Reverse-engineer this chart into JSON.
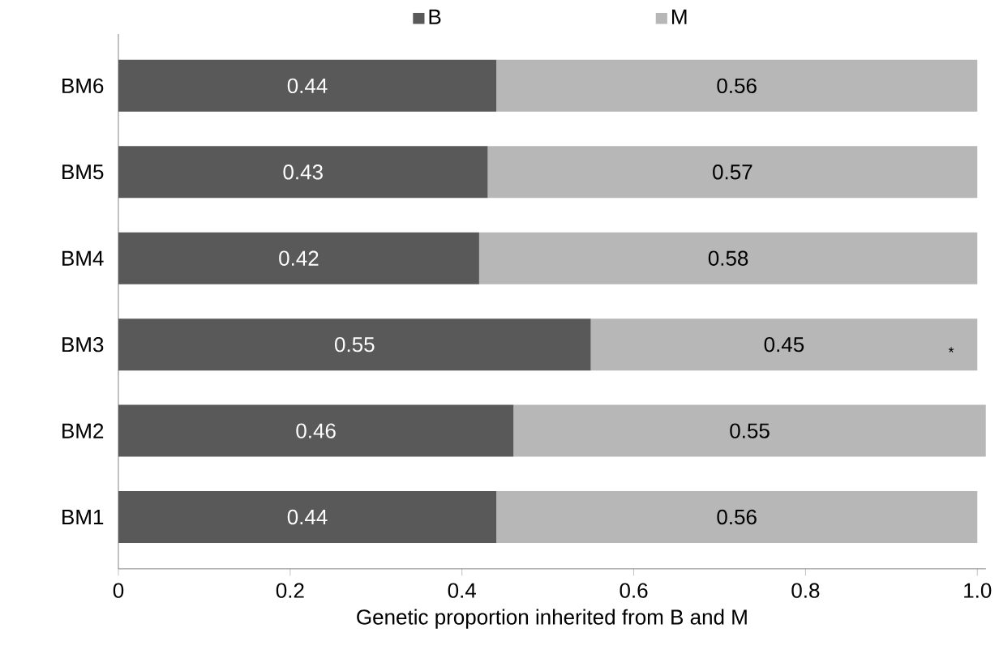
{
  "chart_data": {
    "type": "bar",
    "orientation": "horizontal",
    "stacked": true,
    "data_labels": true,
    "legend": "top",
    "grid": false,
    "xlabel": "Genetic proportion inherited from B and M",
    "categories": [
      "BM6",
      "BM5",
      "BM4",
      "BM3",
      "BM2",
      "BM1"
    ],
    "series": [
      {
        "name": "B",
        "color": "#595959",
        "values": [
          0.44,
          0.43,
          0.42,
          0.55,
          0.46,
          0.44
        ]
      },
      {
        "name": "M",
        "color": "#b7b7b7",
        "values": [
          0.56,
          0.57,
          0.58,
          0.45,
          0.55,
          0.56
        ]
      }
    ],
    "xlim": [
      0,
      1.01
    ],
    "xticks": [
      0,
      0.2,
      0.4,
      0.6,
      0.8,
      {
        "value": 1,
        "label": "1.0"
      }
    ],
    "annotations": [
      "*"
    ]
  }
}
